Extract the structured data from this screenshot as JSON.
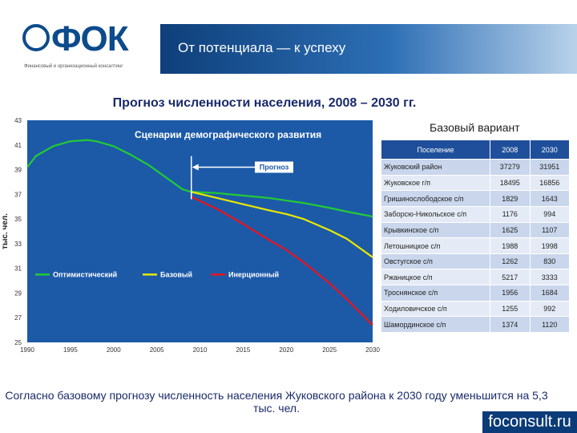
{
  "header": {
    "logo_text": "ФОК",
    "logo_subtitle": "Финансовый и организационный консалтинг",
    "banner_text": "От потенциала — к успеху"
  },
  "main_title": "Прогноз численности населения, 2008 – 2030 гг.",
  "chart_data": {
    "type": "line",
    "title": "Сценарии демографического развития",
    "ylabel": "тыс. чел.",
    "xlabel": "",
    "xlim": [
      1990,
      2030
    ],
    "ylim": [
      25,
      43
    ],
    "x_ticks": [
      1990,
      1995,
      2000,
      2005,
      2010,
      2015,
      2020,
      2025,
      2030
    ],
    "y_ticks": [
      25,
      27,
      29,
      31,
      33,
      35,
      37,
      39,
      41,
      43
    ],
    "forecast_label": "Прогноз",
    "forecast_start": 2009,
    "grid": false,
    "legend_placement": "bottom",
    "series": [
      {
        "name": "Оптимистический",
        "color": "#22cc33",
        "x": [
          1990,
          1991,
          1993,
          1995,
          1997,
          1998,
          2000,
          2002,
          2004,
          2006,
          2008,
          2009,
          2012,
          2015,
          2018,
          2020,
          2022,
          2025,
          2027,
          2030
        ],
        "y": [
          39.2,
          40.1,
          40.9,
          41.3,
          41.4,
          41.3,
          40.9,
          40.2,
          39.4,
          38.4,
          37.4,
          37.2,
          37.1,
          36.9,
          36.7,
          36.5,
          36.3,
          35.9,
          35.6,
          35.2
        ]
      },
      {
        "name": "Базовый",
        "color": "#e8e800",
        "x": [
          2009,
          2012,
          2015,
          2018,
          2020,
          2022,
          2025,
          2027,
          2030
        ],
        "y": [
          37.2,
          36.7,
          36.2,
          35.7,
          35.4,
          35.0,
          34.1,
          33.4,
          31.9
        ]
      },
      {
        "name": "Инерционный",
        "color": "#e8141e",
        "x": [
          2009,
          2012,
          2015,
          2018,
          2020,
          2022,
          2025,
          2027,
          2030
        ],
        "y": [
          36.8,
          35.8,
          34.6,
          33.3,
          32.5,
          31.5,
          29.8,
          28.5,
          26.4
        ]
      }
    ]
  },
  "table": {
    "caption": "Базовый вариант",
    "headers": [
      "Поселение",
      "2008",
      "2030"
    ],
    "rows": [
      [
        "Жуковский район",
        "37279",
        "31951"
      ],
      [
        "Жуковское г/п",
        "18495",
        "16856"
      ],
      [
        "Гришинослободское с/п",
        "1829",
        "1643"
      ],
      [
        "Заборсю-Никольское с/п",
        "1176",
        "994"
      ],
      [
        "Крывкинское с/п",
        "1625",
        "1107"
      ],
      [
        "Летошницкое с/п",
        "1988",
        "1998"
      ],
      [
        "Овстугское с/п",
        "1262",
        "830"
      ],
      [
        "Ржаницкое с/п",
        "5217",
        "3333"
      ],
      [
        "Троснянское с/п",
        "1956",
        "1684"
      ],
      [
        "Ходиловичское с/п",
        "1255",
        "992"
      ],
      [
        "Шамординское с/п",
        "1374",
        "1120"
      ]
    ]
  },
  "footer_text": "Согласно базовому прогнозу численность населения Жуковского района к 2030 году уменьшится на 5,3 тыс. чел.",
  "site": "foconsult.ru"
}
